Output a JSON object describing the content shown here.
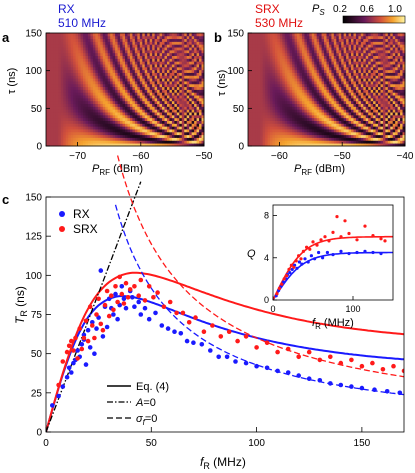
{
  "figure": {
    "panel_a": {
      "letter": "a",
      "tag": "RX",
      "freq": "510 MHz"
    },
    "panel_b": {
      "letter": "b",
      "tag": "SRX",
      "freq": "530 MHz"
    },
    "panel_c": {
      "letter": "c"
    },
    "colorbar": {
      "label": "P",
      "label_sub": "S",
      "ticks": [
        "0.2",
        "0.6",
        "1.0"
      ]
    },
    "colors": {
      "rx": "#1a1aff",
      "srx": "#ff1a1a",
      "tag_rx": "#1a1ad0",
      "tag_srx": "#e01010"
    }
  },
  "chart_data": [
    {
      "type": "heatmap",
      "panel": "a",
      "title": "RX 510 MHz",
      "xlabel": "P",
      "xlabel_sub": "RF",
      "xlabel_unit": " (dBm)",
      "ylabel": "τ (ns)",
      "xlim": [
        -75,
        -50
      ],
      "ylim": [
        0,
        150
      ],
      "xticks": [
        -70,
        -60,
        -50
      ],
      "yticks": [
        0,
        50,
        100,
        150
      ],
      "value_range": [
        0.2,
        1.0
      ],
      "description_model": {
        "onset_dbm": -73,
        "scale": 1.0
      }
    },
    {
      "type": "heatmap",
      "panel": "b",
      "title": "SRX 530 MHz",
      "xlabel": "P",
      "xlabel_sub": "RF",
      "xlabel_unit": " (dBm)",
      "ylabel": "τ (ns)",
      "xlim": [
        -65,
        -40
      ],
      "ylim": [
        0,
        150
      ],
      "xticks": [
        -60,
        -50,
        -40
      ],
      "yticks": [
        0,
        50,
        100,
        150
      ],
      "value_range": [
        0.2,
        1.0
      ],
      "description_model": {
        "onset_dbm": -63,
        "scale": 1.0
      }
    },
    {
      "type": "scatter",
      "panel": "c",
      "xlabel": "f",
      "xlabel_sub": "R",
      "xlabel_unit": " (MHz)",
      "ylabel": "T",
      "ylabel_sub": "R",
      "ylabel_unit": " (ns)",
      "xlim": [
        0,
        170
      ],
      "ylim": [
        0,
        150
      ],
      "xticks": [
        0,
        50,
        100,
        150
      ],
      "yticks": [
        0,
        25,
        50,
        75,
        100,
        125,
        150
      ],
      "legend_points": [
        {
          "name": "RX",
          "color": "#1a1aff"
        },
        {
          "name": "SRX",
          "color": "#ff1a1a"
        }
      ],
      "legend_lines": [
        {
          "name": "Eq. (4)",
          "style": "solid"
        },
        {
          "name": "A",
          "suffix": "=0",
          "style": "dashdot"
        },
        {
          "name": "σ",
          "sub": "f",
          "suffix": "=0",
          "style": "dashed"
        }
      ],
      "series": [
        {
          "name": "RX",
          "color": "#1a1aff",
          "points": [
            [
              3,
              17
            ],
            [
              6,
              23
            ],
            [
              8,
              29
            ],
            [
              10,
              35
            ],
            [
              11,
              41
            ],
            [
              12,
              38
            ],
            [
              13,
              44
            ],
            [
              14,
              46
            ],
            [
              15,
              52
            ],
            [
              16,
              48
            ],
            [
              17,
              56
            ],
            [
              18,
              59
            ],
            [
              18,
              62
            ],
            [
              19,
              43
            ],
            [
              20,
              65
            ],
            [
              21,
              54
            ],
            [
              22,
              70
            ],
            [
              23,
              50
            ],
            [
              24,
              66
            ],
            [
              25,
              73
            ],
            [
              26,
              103
            ],
            [
              27,
              61
            ],
            [
              28,
              80
            ],
            [
              29,
              67
            ],
            [
              30,
              85
            ],
            [
              31,
              79
            ],
            [
              32,
              75
            ],
            [
              33,
              88
            ],
            [
              34,
              72
            ],
            [
              35,
              81
            ],
            [
              36,
              93
            ],
            [
              37,
              85
            ],
            [
              38,
              79
            ],
            [
              40,
              90
            ],
            [
              41,
              86
            ],
            [
              42,
              80
            ],
            [
              44,
              83
            ],
            [
              45,
              75
            ],
            [
              47,
              79
            ],
            [
              49,
              72
            ],
            [
              52,
              76
            ],
            [
              55,
              68
            ],
            [
              58,
              66
            ],
            [
              61,
              64
            ],
            [
              64,
              63
            ],
            [
              67,
              58
            ],
            [
              70,
              57
            ],
            [
              74,
              56
            ],
            [
              78,
              52
            ],
            [
              82,
              48
            ],
            [
              86,
              48
            ],
            [
              90,
              45
            ],
            [
              95,
              44
            ],
            [
              100,
              42
            ],
            [
              105,
              41
            ],
            [
              110,
              39
            ],
            [
              115,
              38
            ],
            [
              120,
              36
            ],
            [
              125,
              34
            ],
            [
              130,
              33
            ],
            [
              135,
              31
            ],
            [
              140,
              30
            ],
            [
              145,
              29
            ],
            [
              150,
              28
            ],
            [
              156,
              27
            ],
            [
              162,
              26
            ],
            [
              168,
              25
            ]
          ]
        },
        {
          "name": "SRX",
          "color": "#ff1a1a",
          "points": [
            [
              6,
              30
            ],
            [
              8,
              45
            ],
            [
              10,
              51
            ],
            [
              11,
              55
            ],
            [
              12,
              58
            ],
            [
              13,
              52
            ],
            [
              14,
              60
            ],
            [
              15,
              47
            ],
            [
              16,
              66
            ],
            [
              17,
              53
            ],
            [
              18,
              60
            ],
            [
              19,
              71
            ],
            [
              20,
              58
            ],
            [
              21,
              80
            ],
            [
              22,
              68
            ],
            [
              23,
              60
            ],
            [
              24,
              75
            ],
            [
              25,
              85
            ],
            [
              26,
              69
            ],
            [
              27,
              65
            ],
            [
              28,
              81
            ],
            [
              29,
              90
            ],
            [
              30,
              74
            ],
            [
              31,
              87
            ],
            [
              32,
              78
            ],
            [
              33,
              93
            ],
            [
              34,
              83
            ],
            [
              35,
              99
            ],
            [
              36,
              88
            ],
            [
              37,
              82
            ],
            [
              38,
              95
            ],
            [
              39,
              86
            ],
            [
              40,
              91
            ],
            [
              42,
              93
            ],
            [
              44,
              87
            ],
            [
              45,
              97
            ],
            [
              47,
              84
            ],
            [
              49,
              93
            ],
            [
              51,
              86
            ],
            [
              53,
              89
            ],
            [
              56,
              80
            ],
            [
              59,
              83
            ],
            [
              62,
              76
            ],
            [
              65,
              76
            ],
            [
              68,
              70
            ],
            [
              71,
              73
            ],
            [
              75,
              64
            ],
            [
              79,
              68
            ],
            [
              83,
              61
            ],
            [
              87,
              64
            ],
            [
              91,
              58
            ],
            [
              95,
              61
            ],
            [
              100,
              54
            ],
            [
              105,
              57
            ],
            [
              110,
              51
            ],
            [
              115,
              53
            ],
            [
              120,
              48
            ],
            [
              125,
              51
            ],
            [
              130,
              46
            ],
            [
              135,
              48
            ],
            [
              140,
              44
            ],
            [
              145,
              46
            ],
            [
              150,
              42
            ],
            [
              155,
              44
            ],
            [
              160,
              40
            ],
            [
              165,
              42
            ],
            [
              170,
              39
            ]
          ]
        }
      ],
      "models": {
        "eq4_rx": {
          "peak_f": 35,
          "peak_t": 84,
          "t_inf_at": 170,
          "t_inf": 22
        },
        "eq4_srx": {
          "peak_f": 40,
          "peak_t": 97,
          "t_inf_at": 170,
          "t_inf": 32
        },
        "A0_slope": 3.55,
        "sigma0_rx": {
          "f0": 33,
          "t0": 145
        },
        "sigma0_srx": {
          "f0": 40,
          "t0": 150
        }
      }
    },
    {
      "type": "scatter",
      "panel": "c-inset",
      "xlabel": "f",
      "xlabel_sub": "R",
      "xlabel_unit": " (MHz)",
      "ylabel": "Q",
      "xlim": [
        0,
        150
      ],
      "ylim": [
        0,
        9
      ],
      "xticks": [
        0,
        100
      ],
      "yticks": [
        0,
        4,
        8
      ],
      "series": [
        {
          "name": "RX",
          "color": "#1a1aff",
          "points": [
            [
              4,
              0.4
            ],
            [
              7,
              0.9
            ],
            [
              10,
              1.3
            ],
            [
              13,
              1.7
            ],
            [
              16,
              2.0
            ],
            [
              18,
              2.4
            ],
            [
              21,
              2.6
            ],
            [
              24,
              2.9
            ],
            [
              27,
              3.3
            ],
            [
              30,
              3.0
            ],
            [
              33,
              3.6
            ],
            [
              36,
              3.4
            ],
            [
              40,
              3.9
            ],
            [
              44,
              3.6
            ],
            [
              48,
              4.2
            ],
            [
              52,
              3.9
            ],
            [
              57,
              4.5
            ],
            [
              62,
              4.0
            ],
            [
              68,
              4.5
            ],
            [
              75,
              4.3
            ],
            [
              85,
              4.6
            ],
            [
              95,
              4.4
            ],
            [
              105,
              4.5
            ],
            [
              115,
              4.6
            ],
            [
              125,
              4.5
            ],
            [
              135,
              4.4
            ]
          ]
        },
        {
          "name": "SRX",
          "color": "#ff1a1a",
          "points": [
            [
              5,
              0.6
            ],
            [
              8,
              1.1
            ],
            [
              11,
              1.5
            ],
            [
              14,
              2.0
            ],
            [
              17,
              2.3
            ],
            [
              20,
              2.9
            ],
            [
              23,
              3.3
            ],
            [
              26,
              3.1
            ],
            [
              29,
              3.7
            ],
            [
              32,
              4.2
            ],
            [
              35,
              3.9
            ],
            [
              38,
              4.6
            ],
            [
              42,
              5.0
            ],
            [
              46,
              4.8
            ],
            [
              50,
              5.5
            ],
            [
              55,
              5.2
            ],
            [
              60,
              5.7
            ],
            [
              65,
              6.0
            ],
            [
              70,
              5.6
            ],
            [
              75,
              6.4
            ],
            [
              80,
              7.9
            ],
            [
              85,
              6.0
            ],
            [
              90,
              7.5
            ],
            [
              95,
              6.3
            ],
            [
              105,
              5.7
            ],
            [
              115,
              7.0
            ],
            [
              125,
              6.1
            ],
            [
              135,
              5.8
            ],
            [
              140,
              5.6
            ]
          ]
        }
      ],
      "fit_plateau": {
        "rx": 4.5,
        "srx": 6.0
      }
    }
  ]
}
